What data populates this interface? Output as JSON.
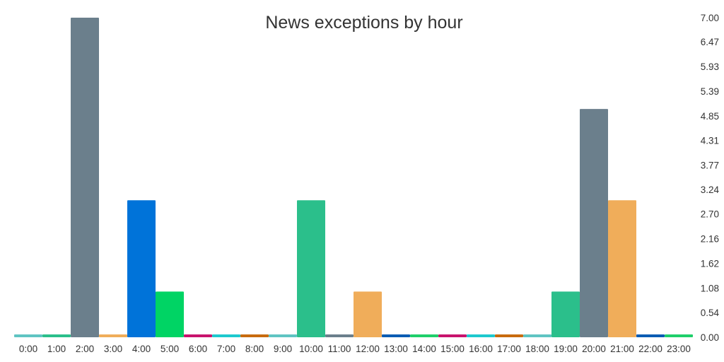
{
  "chart_data": {
    "type": "bar",
    "title": "News exceptions by hour",
    "xlabel": "",
    "ylabel": "",
    "categories": [
      "0:00",
      "1:00",
      "2:00",
      "3:00",
      "4:00",
      "5:00",
      "6:00",
      "7:00",
      "8:00",
      "9:00",
      "10:00",
      "11:00",
      "12:00",
      "13:00",
      "14:00",
      "15:00",
      "16:00",
      "17:00",
      "18:00",
      "19:00",
      "20:00",
      "21:00",
      "22:00",
      "23:00"
    ],
    "values": [
      0,
      0,
      7,
      0,
      3,
      1,
      0,
      0,
      0,
      0,
      3,
      0,
      1,
      0,
      0,
      0,
      0,
      0,
      0,
      1,
      5,
      3,
      0,
      0
    ],
    "colors": [
      "#5fc4c2",
      "#2bbf8b",
      "#6b7f8c",
      "#f0ad5a",
      "#0073d9",
      "#00d464",
      "#c8136d",
      "#1ec9ce",
      "#c86b0f",
      "#5fc4c2",
      "#2bbf8b",
      "#6b7f8c",
      "#f0ad5a",
      "#0a5cb3",
      "#1fcf6a",
      "#c8136d",
      "#1ec9ce",
      "#c86b0f",
      "#5fc4c2",
      "#2bbf8b",
      "#6b7f8c",
      "#f0ad5a",
      "#0a5cb3",
      "#1fcf6a"
    ],
    "ylim": [
      0,
      7
    ],
    "yticks": [
      "7.00",
      "6.47",
      "5.93",
      "5.39",
      "4.85",
      "4.31",
      "3.77",
      "3.24",
      "2.70",
      "2.16",
      "1.62",
      "1.08",
      "0.54",
      "0.00"
    ],
    "y_axis_position": "right",
    "grid": false,
    "legend": "none"
  }
}
